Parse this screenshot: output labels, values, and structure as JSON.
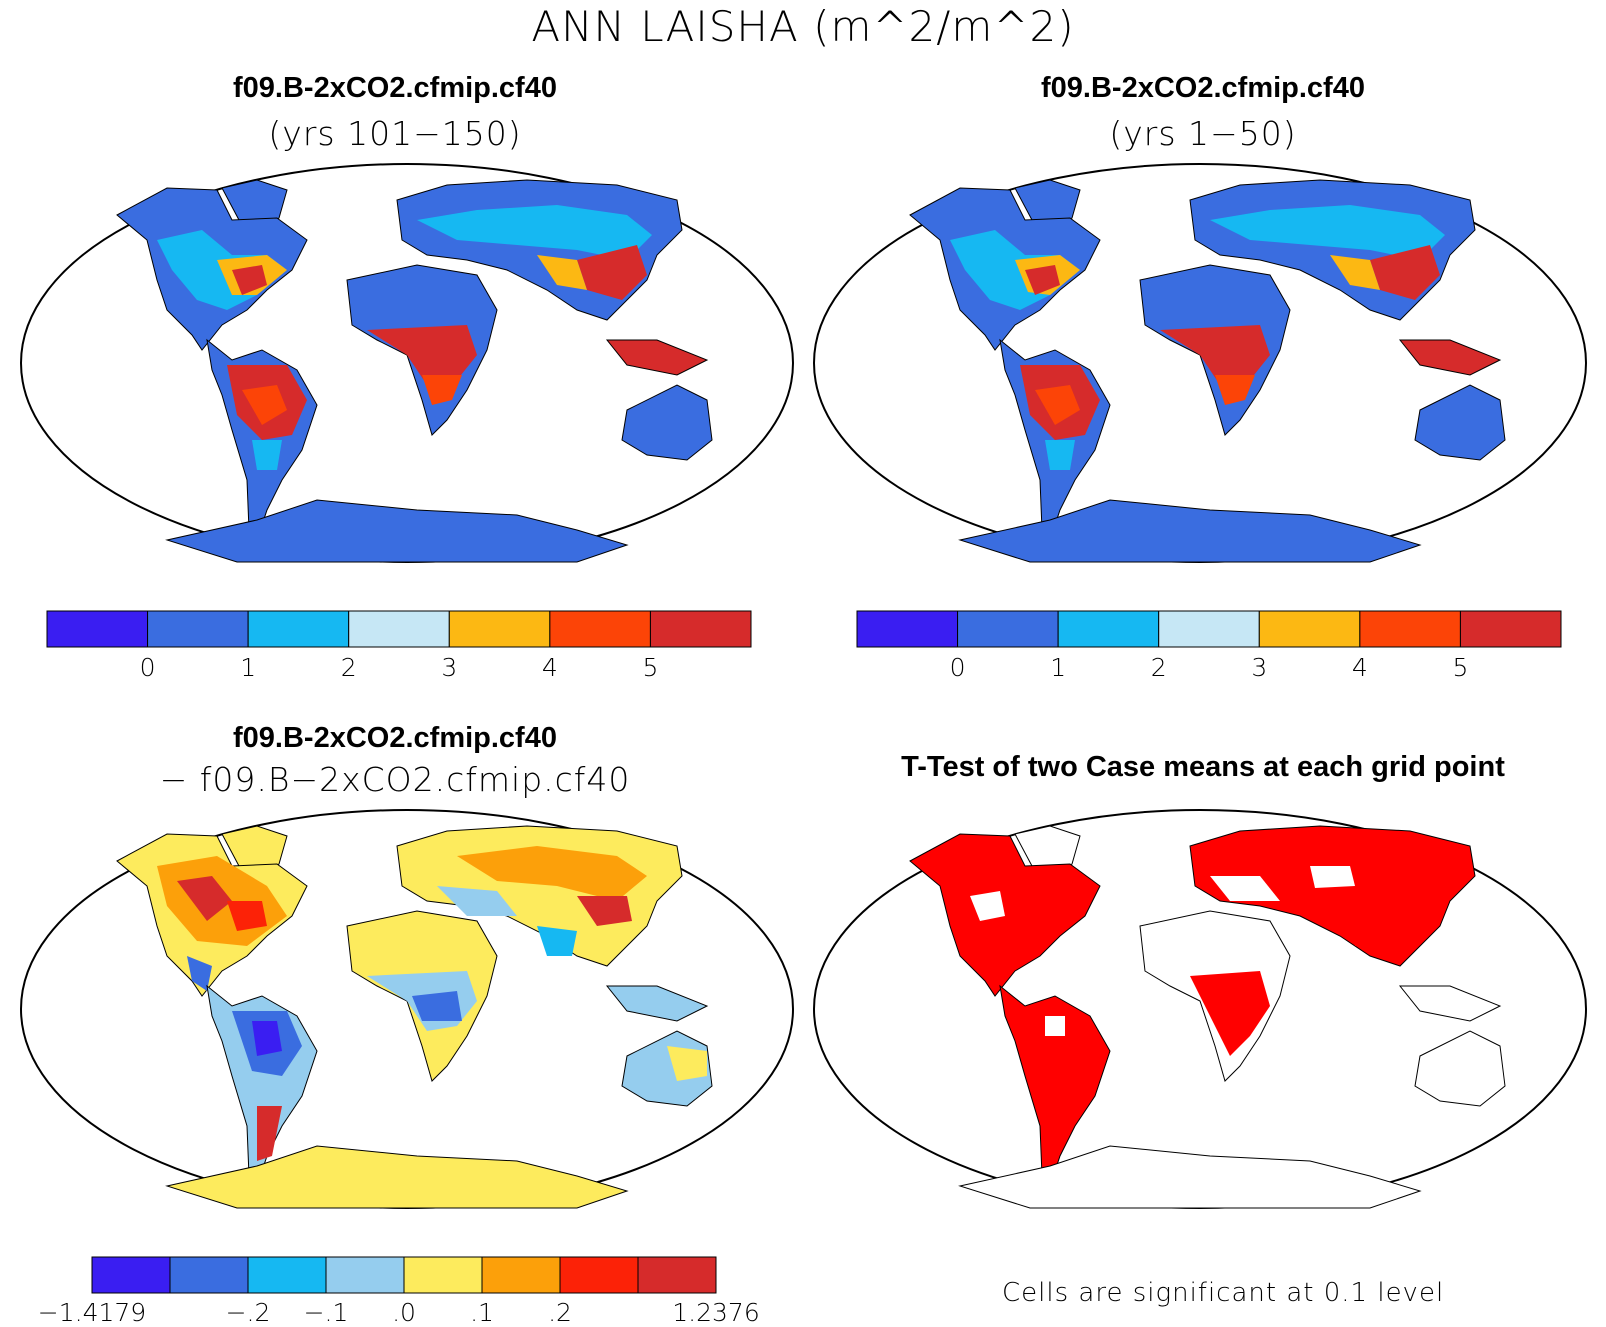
{
  "main_title": "ANN LAISHA (m^2/m^2)",
  "panels": [
    {
      "title_line1": "f09.B-2xCO2.cfmip.cf40",
      "title_line2": "(yrs 101−150)"
    },
    {
      "title_line1": "f09.B-2xCO2.cfmip.cf40",
      "title_line2": "(yrs 1−50)"
    },
    {
      "title_line1": "f09.B-2xCO2.cfmip.cf40",
      "title_line2": "− f09.B−2xCO2.cfmip.cf40"
    },
    {
      "title_line1": "T-Test of two Case means at each grid point",
      "title_line2": ""
    }
  ],
  "colorbar_top": {
    "colors": [
      "#3a1ef2",
      "#3a6de0",
      "#16b8f2",
      "#c6e7f5",
      "#fcb813",
      "#fc4407",
      "#d62b2b"
    ],
    "labels": [
      "0",
      "1",
      "2",
      "3",
      "4",
      "5"
    ]
  },
  "colorbar_diff": {
    "colors": [
      "#3a1ef2",
      "#3a6de0",
      "#16b8f2",
      "#95cdee",
      "#fdeb5d",
      "#fca00a",
      "#fc2207",
      "#d62b2b"
    ],
    "labels": [
      "−1.4179",
      "−.2",
      "−.1",
      ".0",
      ".1",
      ".2",
      "1.2376"
    ]
  },
  "ttest_note": "Cells are significant at 0.1 level",
  "ttest_color": "#ff0000"
}
